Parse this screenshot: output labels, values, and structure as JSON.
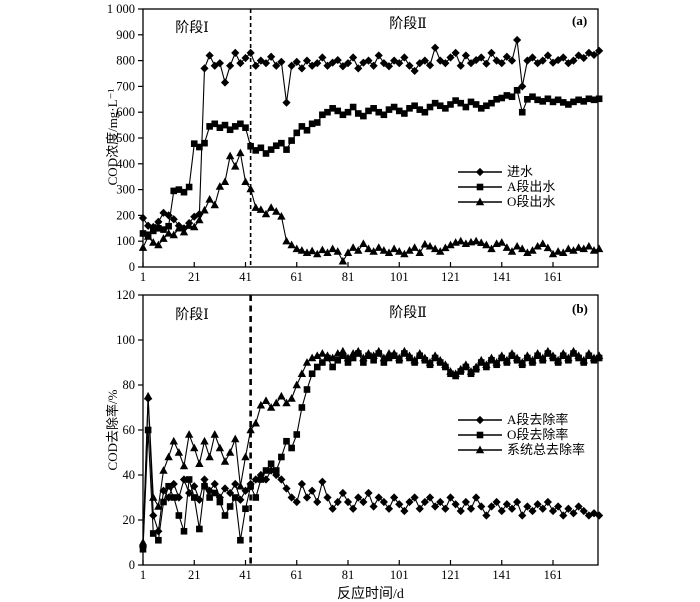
{
  "figure": {
    "background": "#ffffff",
    "ink_color": "#000000"
  },
  "chart_data": [
    {
      "type": "line",
      "panel_label": "(a)",
      "ylabel": "COD浓度/mg·L⁻¹",
      "xlabel": "",
      "stages": [
        "阶段Ⅰ",
        "阶段Ⅱ"
      ],
      "divider_day": 43,
      "xlim": [
        1,
        183
      ],
      "ylim": [
        0,
        1000
      ],
      "xticks": [
        1,
        21,
        41,
        61,
        81,
        101,
        121,
        141,
        161
      ],
      "yticks": [
        0,
        100,
        200,
        300,
        400,
        500,
        600,
        700,
        800,
        900,
        1000
      ],
      "ytick_labels": [
        "0",
        "100",
        "200",
        "300",
        "400",
        "500",
        "600",
        "700",
        "800",
        "900",
        "1 000"
      ],
      "legend_position": "center-right",
      "grid": false,
      "color": "#000000",
      "days": [
        1,
        3,
        5,
        7,
        9,
        11,
        13,
        15,
        17,
        19,
        21,
        23,
        25,
        27,
        29,
        31,
        33,
        35,
        37,
        39,
        41,
        43,
        45,
        47,
        49,
        51,
        53,
        55,
        57,
        59,
        61,
        63,
        65,
        67,
        69,
        71,
        73,
        75,
        77,
        79,
        81,
        83,
        85,
        87,
        89,
        91,
        93,
        95,
        97,
        99,
        101,
        103,
        105,
        107,
        109,
        111,
        113,
        115,
        117,
        119,
        121,
        123,
        125,
        127,
        129,
        131,
        133,
        135,
        137,
        139,
        141,
        143,
        145,
        147,
        149,
        151,
        153,
        155,
        157,
        159,
        161,
        163,
        165,
        167,
        169,
        171,
        173,
        175,
        177,
        179
      ],
      "series": [
        {
          "name": "进水",
          "marker": "diamond",
          "values": [
            190,
            160,
            155,
            175,
            210,
            200,
            185,
            160,
            150,
            170,
            195,
            205,
            770,
            820,
            780,
            790,
            715,
            780,
            830,
            790,
            810,
            830,
            780,
            800,
            790,
            815,
            780,
            795,
            637,
            780,
            795,
            770,
            800,
            780,
            790,
            812,
            780,
            792,
            802,
            778,
            790,
            812,
            770,
            792,
            800,
            780,
            820,
            790,
            778,
            800,
            790,
            812,
            780,
            760,
            790,
            800,
            782,
            850,
            800,
            790,
            812,
            830,
            780,
            820,
            790,
            802,
            812,
            788,
            830,
            800,
            790,
            815,
            800,
            880,
            700,
            800,
            812,
            790,
            800,
            820,
            792,
            802,
            812,
            790,
            800,
            820,
            810,
            830,
            822,
            838
          ]
        },
        {
          "name": "A段出水",
          "marker": "square",
          "values": [
            130,
            125,
            140,
            150,
            145,
            158,
            295,
            300,
            290,
            310,
            478,
            465,
            480,
            545,
            555,
            540,
            550,
            532,
            545,
            555,
            540,
            468,
            452,
            462,
            440,
            455,
            470,
            480,
            455,
            490,
            520,
            545,
            530,
            555,
            560,
            590,
            600,
            615,
            605,
            590,
            600,
            620,
            595,
            585,
            605,
            615,
            600,
            590,
            610,
            620,
            605,
            595,
            615,
            625,
            610,
            600,
            620,
            635,
            625,
            615,
            630,
            645,
            635,
            620,
            640,
            630,
            615,
            625,
            635,
            650,
            655,
            665,
            660,
            685,
            600,
            650,
            660,
            648,
            642,
            652,
            640,
            648,
            638,
            630,
            640,
            648,
            642,
            652,
            648,
            652
          ]
        },
        {
          "name": "O段出水",
          "marker": "triangle",
          "values": [
            75,
            118,
            95,
            85,
            110,
            130,
            124,
            150,
            135,
            160,
            155,
            182,
            220,
            262,
            240,
            312,
            330,
            430,
            390,
            442,
            330,
            302,
            230,
            222,
            205,
            230,
            215,
            196,
            100,
            85,
            70,
            64,
            55,
            62,
            50,
            66,
            55,
            70,
            60,
            22,
            55,
            75,
            64,
            90,
            70,
            60,
            75,
            64,
            55,
            70,
            60,
            50,
            64,
            75,
            55,
            88,
            80,
            70,
            60,
            74,
            85,
            95,
            100,
            90,
            96,
            100,
            94,
            85,
            70,
            90,
            95,
            75,
            60,
            80,
            70,
            55,
            64,
            80,
            90,
            74,
            50,
            60,
            55,
            70,
            64,
            75,
            70,
            80,
            64,
            70
          ]
        }
      ]
    },
    {
      "type": "line",
      "panel_label": "(b)",
      "ylabel": "COD去除率/%",
      "xlabel": "反应时间/d",
      "stages": [
        "阶段Ⅰ",
        "阶段Ⅱ"
      ],
      "divider_day": 43,
      "xlim": [
        1,
        183
      ],
      "ylim": [
        0,
        120
      ],
      "xticks": [
        1,
        21,
        41,
        61,
        81,
        101,
        121,
        141,
        161
      ],
      "yticks": [
        0,
        20,
        40,
        60,
        80,
        100,
        120
      ],
      "ytick_labels": [
        "0",
        "20",
        "40",
        "60",
        "80",
        "100",
        "120"
      ],
      "legend_position": "center-right",
      "grid": false,
      "color": "#000000",
      "days": [
        1,
        3,
        5,
        7,
        9,
        11,
        13,
        15,
        17,
        19,
        21,
        23,
        25,
        27,
        29,
        31,
        33,
        35,
        37,
        39,
        41,
        43,
        45,
        47,
        49,
        51,
        53,
        55,
        57,
        59,
        61,
        63,
        65,
        67,
        69,
        71,
        73,
        75,
        77,
        79,
        81,
        83,
        85,
        87,
        89,
        91,
        93,
        95,
        97,
        99,
        101,
        103,
        105,
        107,
        109,
        111,
        113,
        115,
        117,
        119,
        121,
        123,
        125,
        127,
        129,
        131,
        133,
        135,
        137,
        139,
        141,
        143,
        145,
        147,
        149,
        151,
        153,
        155,
        157,
        159,
        161,
        163,
        165,
        167,
        169,
        171,
        173,
        175,
        177,
        179
      ],
      "series": [
        {
          "name": "A段去除率",
          "marker": "diamond",
          "values": [
            8,
            74,
            22,
            15,
            33,
            30,
            36,
            30,
            38,
            32,
            35,
            29,
            38,
            33,
            36,
            30,
            34,
            32,
            36,
            29,
            33,
            36,
            38,
            40,
            38,
            42,
            40,
            38,
            34,
            30,
            28,
            36,
            30,
            33,
            28,
            37,
            30,
            25,
            28,
            32,
            28,
            25,
            30,
            28,
            32,
            26,
            30,
            28,
            25,
            30,
            27,
            24,
            28,
            30,
            25,
            28,
            30,
            26,
            28,
            25,
            30,
            27,
            24,
            28,
            25,
            30,
            26,
            22,
            26,
            28,
            24,
            27,
            25,
            28,
            22,
            26,
            24,
            27,
            25,
            28,
            24,
            26,
            22,
            25,
            23,
            26,
            24,
            22,
            23,
            22
          ]
        },
        {
          "name": "O段去除率",
          "marker": "square",
          "values": [
            7,
            60,
            14,
            11,
            28,
            35,
            30,
            22,
            15,
            38,
            30,
            16,
            35,
            30,
            32,
            28,
            22,
            26,
            30,
            11,
            25,
            35,
            30,
            38,
            42,
            45,
            42,
            48,
            55,
            52,
            58,
            70,
            78,
            85,
            88,
            90,
            92,
            88,
            91,
            93,
            90,
            92,
            94,
            90,
            93,
            91,
            94,
            90,
            92,
            93,
            91,
            94,
            92,
            90,
            93,
            91,
            89,
            92,
            90,
            88,
            85,
            84,
            86,
            88,
            85,
            87,
            90,
            88,
            91,
            89,
            92,
            90,
            93,
            91,
            89,
            92,
            90,
            93,
            91,
            94,
            92,
            90,
            93,
            91,
            94,
            92,
            90,
            93,
            91,
            92
          ]
        },
        {
          "name": "系统总去除率",
          "marker": "triangle",
          "values": [
            10,
            75,
            30,
            26,
            42,
            48,
            55,
            50,
            44,
            58,
            52,
            45,
            55,
            48,
            58,
            52,
            46,
            50,
            56,
            35,
            48,
            60,
            63,
            71,
            73,
            70,
            72,
            75,
            72,
            74,
            80,
            85,
            90,
            92,
            93,
            94,
            93,
            92,
            94,
            95,
            92,
            94,
            95,
            92,
            94,
            93,
            95,
            92,
            94,
            94,
            92,
            95,
            93,
            91,
            94,
            92,
            90,
            93,
            91,
            89,
            86,
            85,
            87,
            89,
            86,
            88,
            91,
            89,
            92,
            90,
            93,
            91,
            94,
            92,
            90,
            93,
            91,
            94,
            92,
            95,
            93,
            91,
            94,
            92,
            95,
            93,
            91,
            94,
            92,
            93
          ]
        }
      ]
    }
  ]
}
